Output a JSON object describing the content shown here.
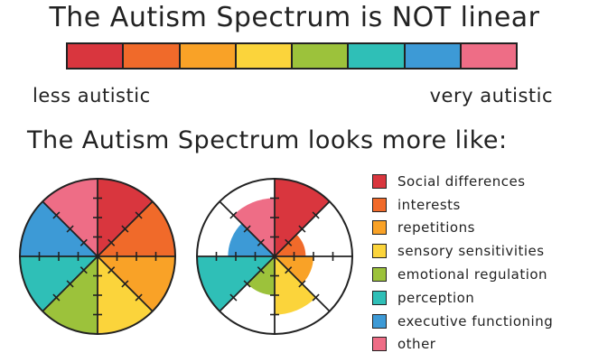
{
  "title": "The Autism Spectrum is NOT linear",
  "spectrum": {
    "left_label": "less autistic",
    "right_label": "very autistic",
    "colors": [
      "#d9363e",
      "#f06a2a",
      "#f9a227",
      "#fbd43b",
      "#9cc23b",
      "#2fbfb7",
      "#3d9ad6",
      "#ee6d86"
    ]
  },
  "subtitle": "The Autism Spectrum looks more like:",
  "legend": [
    {
      "label": "Social differences",
      "color": "#d9363e"
    },
    {
      "label": "interests",
      "color": "#f06a2a"
    },
    {
      "label": "repetitions",
      "color": "#f9a227"
    },
    {
      "label": "sensory sensitivities",
      "color": "#fbd43b"
    },
    {
      "label": "emotional regulation",
      "color": "#9cc23b"
    },
    {
      "label": "perception",
      "color": "#2fbfb7"
    },
    {
      "label": "executive functioning",
      "color": "#3d9ad6"
    },
    {
      "label": "other",
      "color": "#ee6d86"
    }
  ],
  "pie_full": {
    "segments": [
      {
        "trait": "Social differences",
        "level": 1.0
      },
      {
        "trait": "interests",
        "level": 1.0
      },
      {
        "trait": "repetitions",
        "level": 1.0
      },
      {
        "trait": "sensory sensitivities",
        "level": 1.0
      },
      {
        "trait": "emotional regulation",
        "level": 1.0
      },
      {
        "trait": "perception",
        "level": 1.0
      },
      {
        "trait": "executive functioning",
        "level": 1.0
      },
      {
        "trait": "other",
        "level": 1.0
      }
    ]
  },
  "pie_profile": {
    "segments": [
      {
        "trait": "Social differences",
        "level": 1.0
      },
      {
        "trait": "interests",
        "level": 0.4
      },
      {
        "trait": "repetitions",
        "level": 0.5
      },
      {
        "trait": "sensory sensitivities",
        "level": 0.75
      },
      {
        "trait": "emotional regulation",
        "level": 0.5
      },
      {
        "trait": "perception",
        "level": 1.0
      },
      {
        "trait": "executive functioning",
        "level": 0.6
      },
      {
        "trait": "other",
        "level": 0.75
      }
    ]
  }
}
